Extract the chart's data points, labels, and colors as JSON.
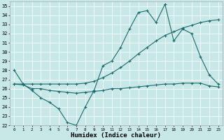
{
  "xlabel": "Humidex (Indice chaleur)",
  "xlim": [
    -0.5,
    23.5
  ],
  "ylim": [
    22,
    35.5
  ],
  "yticks": [
    22,
    23,
    24,
    25,
    26,
    27,
    28,
    29,
    30,
    31,
    32,
    33,
    34,
    35
  ],
  "xticks": [
    0,
    1,
    2,
    3,
    4,
    5,
    6,
    7,
    8,
    9,
    10,
    11,
    12,
    13,
    14,
    15,
    16,
    17,
    18,
    19,
    20,
    21,
    22,
    23
  ],
  "background_color": "#c8e8e8",
  "line_color": "#1a6b6b",
  "line1_x": [
    0,
    1,
    2,
    3,
    4,
    5,
    6,
    7,
    8,
    9,
    10,
    11,
    12,
    13,
    14,
    15,
    16,
    17,
    18,
    19,
    20,
    21,
    22,
    23
  ],
  "line1_y": [
    28.0,
    26.5,
    25.8,
    25.0,
    24.5,
    23.8,
    22.3,
    22.0,
    24.0,
    25.8,
    28.5,
    29.0,
    30.5,
    32.5,
    34.3,
    34.5,
    33.2,
    35.2,
    31.2,
    32.5,
    32.0,
    29.5,
    27.5,
    26.5
  ],
  "line2_x": [
    0,
    1,
    2,
    3,
    4,
    5,
    6,
    7,
    8,
    9,
    10,
    11,
    12,
    13,
    14,
    15,
    16,
    17,
    18,
    19,
    20,
    21,
    22,
    23
  ],
  "line2_y": [
    26.5,
    26.4,
    26.0,
    26.0,
    25.8,
    25.7,
    25.6,
    25.5,
    25.6,
    25.7,
    25.8,
    26.0,
    26.0,
    26.1,
    26.2,
    26.3,
    26.4,
    26.5,
    26.5,
    26.6,
    26.6,
    26.6,
    26.3,
    26.2
  ],
  "line3_x": [
    0,
    1,
    2,
    3,
    4,
    5,
    6,
    7,
    8,
    9,
    10,
    11,
    12,
    13,
    14,
    15,
    16,
    17,
    18,
    19,
    20,
    21,
    22,
    23
  ],
  "line3_y": [
    26.5,
    26.5,
    26.5,
    26.5,
    26.5,
    26.5,
    26.5,
    26.5,
    26.6,
    26.8,
    27.2,
    27.7,
    28.3,
    29.0,
    29.8,
    30.5,
    31.2,
    31.8,
    32.2,
    32.6,
    32.9,
    33.2,
    33.4,
    33.5
  ]
}
